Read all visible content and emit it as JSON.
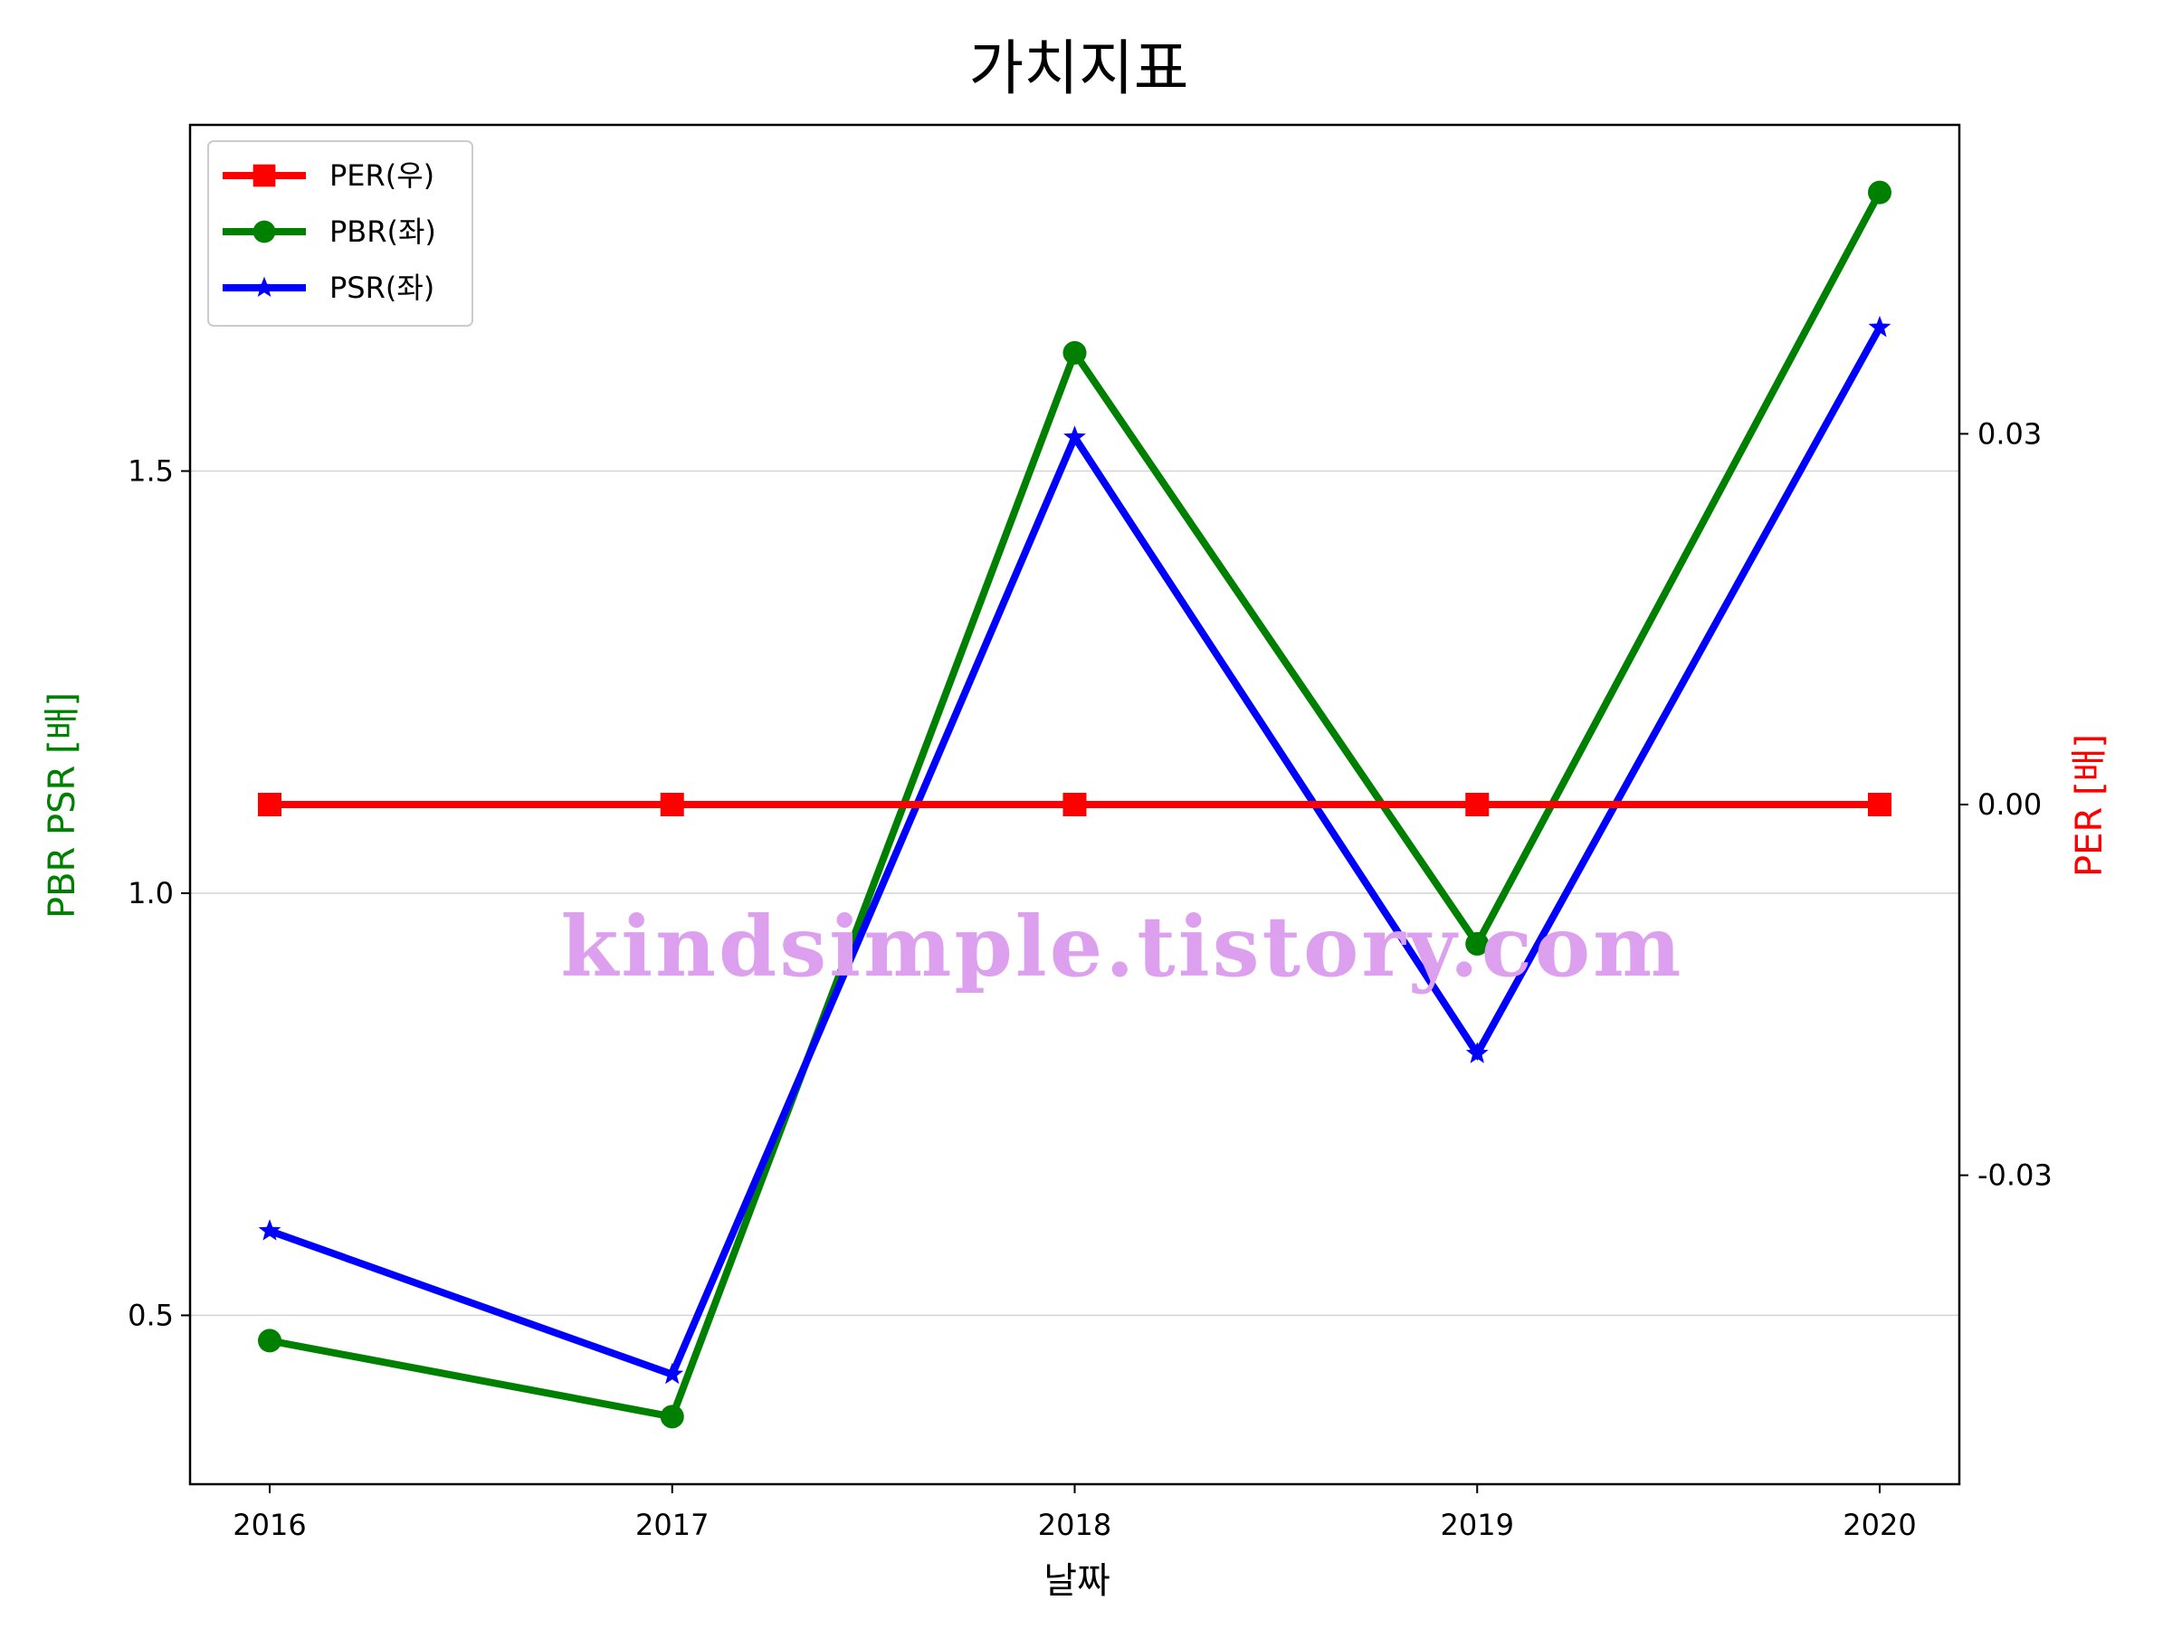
{
  "chart_data": {
    "type": "line",
    "title": "가치지표",
    "xlabel": "날짜",
    "ylabel_left": "PBR PSR [배]",
    "ylabel_right": "PER [배]",
    "ylabel_left_color": "#008000",
    "ylabel_right_color": "#ff0000",
    "categories": [
      "2016",
      "2017",
      "2018",
      "2019",
      "2020"
    ],
    "ylim_left": [
      0.3,
      1.91
    ],
    "yticks_left": [
      0.5,
      1.0,
      1.5
    ],
    "ytick_labels_left": [
      "0.5",
      "1.0",
      "1.5"
    ],
    "ylim_right": [
      -0.055,
      0.055
    ],
    "yticks_right": [
      -0.03,
      0.0,
      0.03
    ],
    "ytick_labels_right": [
      "-0.03",
      "0.00",
      "0.03"
    ],
    "grid": "horizontal",
    "legend_position": "upper-left",
    "series": [
      {
        "name": "PER(우)",
        "axis": "right",
        "color": "#ff0000",
        "marker": "square",
        "values": [
          0,
          0,
          0,
          0,
          0
        ]
      },
      {
        "name": "PBR(좌)",
        "axis": "left",
        "color": "#008000",
        "marker": "circle",
        "values": [
          0.47,
          0.38,
          1.64,
          0.94,
          1.83
        ]
      },
      {
        "name": "PSR(좌)",
        "axis": "left",
        "color": "#0000ff",
        "marker": "star",
        "values": [
          0.6,
          0.43,
          1.54,
          0.81,
          1.67
        ]
      }
    ],
    "watermark": "kindsimple.tistory.com"
  }
}
